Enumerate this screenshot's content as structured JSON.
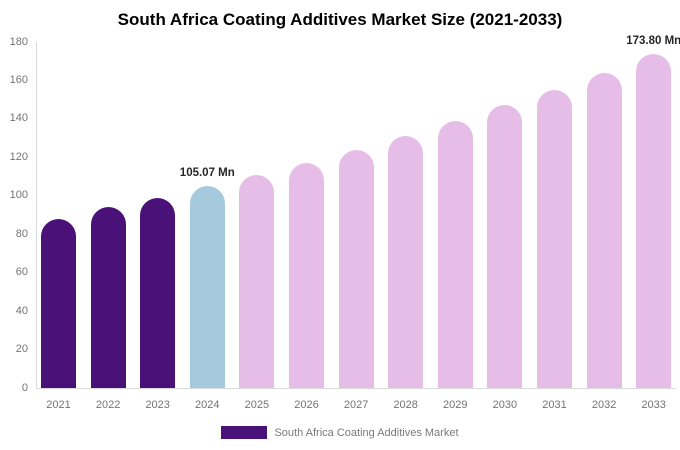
{
  "title": "South Africa Coating Additives Market Size (2021-2033)",
  "legend": {
    "label": "South Africa Coating Additives Market",
    "swatch_color": "#4a1178"
  },
  "colors": {
    "historical_bar": "#4a1178",
    "base_year_bar": "#a5cade",
    "forecast_bar": "#e5bde6",
    "axis_line": "#d9d9d9",
    "tick_text": "#737373",
    "annotation_text": "#262626",
    "legend_text": "#7a7a7a",
    "title_text": "#000000",
    "background": "#ffffff"
  },
  "chart_data": {
    "type": "bar",
    "title": "South Africa Coating Additives Market Size (2021-2033)",
    "xlabel": "",
    "ylabel": "",
    "categories": [
      "2021",
      "2022",
      "2023",
      "2024",
      "2025",
      "2026",
      "2027",
      "2028",
      "2029",
      "2030",
      "2031",
      "2032",
      "2033"
    ],
    "series": [
      {
        "name": "South Africa Coating Additives Market",
        "values": [
          88,
          94,
          99,
          105.07,
          111,
          117,
          124,
          131,
          139,
          147,
          155,
          164,
          173.8
        ]
      }
    ],
    "bar_colors": [
      "#4a1178",
      "#4a1178",
      "#4a1178",
      "#a5cade",
      "#e5bde6",
      "#e5bde6",
      "#e5bde6",
      "#e5bde6",
      "#e5bde6",
      "#e5bde6",
      "#e5bde6",
      "#e5bde6",
      "#e5bde6"
    ],
    "annotations": [
      {
        "index": 3,
        "category": "2024",
        "label": "105.07 Mn"
      },
      {
        "index": 12,
        "category": "2033",
        "label": "173.80 Mn"
      }
    ],
    "ylim": [
      0,
      180
    ],
    "yticks": [
      0,
      20,
      40,
      60,
      80,
      100,
      120,
      140,
      160,
      180
    ],
    "grid": false,
    "legend_position": "bottom"
  }
}
